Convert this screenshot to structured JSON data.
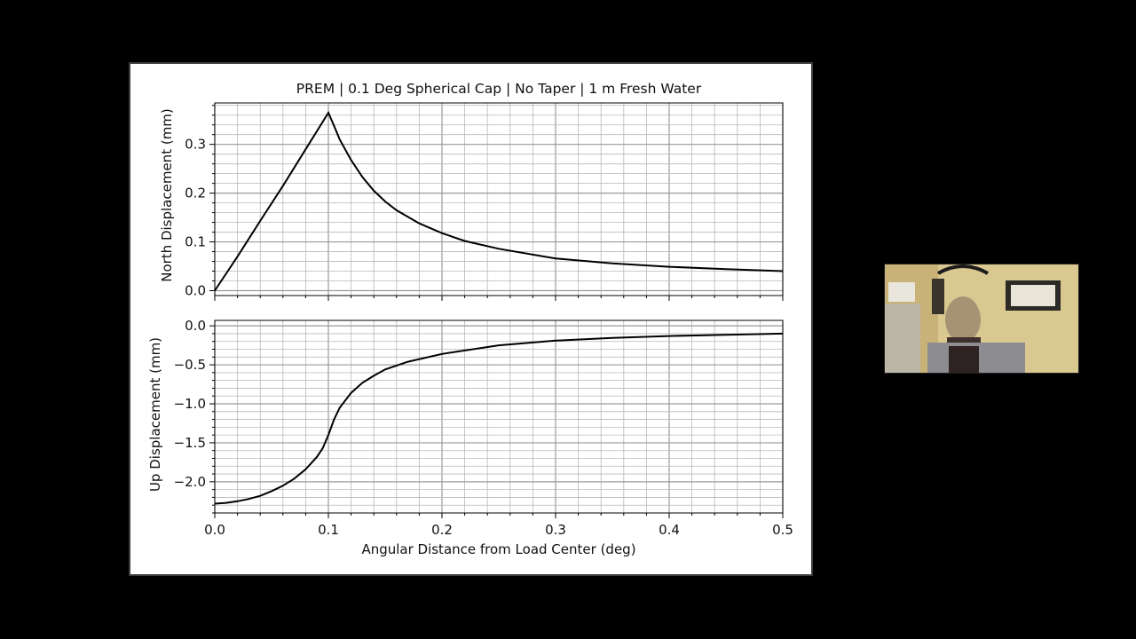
{
  "chart_data": [
    {
      "type": "line",
      "title": "PREM | 0.1 Deg Spherical Cap | No Taper | 1 m Fresh Water",
      "xlabel": "",
      "ylabel": "North Displacement (mm)",
      "xlim": [
        0,
        0.5
      ],
      "ylim": [
        -0.01,
        0.385
      ],
      "grid": true,
      "yticks": [
        0.0,
        0.1,
        0.2,
        0.3
      ],
      "ytick_labels": [
        "0.0",
        "0.1",
        "0.2",
        "0.3"
      ],
      "series": [
        {
          "color": "#000000",
          "x": [
            0.0,
            0.02,
            0.04,
            0.06,
            0.08,
            0.1,
            0.105,
            0.11,
            0.12,
            0.13,
            0.14,
            0.15,
            0.16,
            0.18,
            0.2,
            0.22,
            0.25,
            0.3,
            0.35,
            0.4,
            0.45,
            0.5
          ],
          "y": [
            0.0,
            0.07,
            0.143,
            0.215,
            0.29,
            0.365,
            0.338,
            0.31,
            0.268,
            0.233,
            0.205,
            0.183,
            0.165,
            0.138,
            0.118,
            0.102,
            0.086,
            0.066,
            0.056,
            0.049,
            0.044,
            0.04
          ]
        }
      ]
    },
    {
      "type": "line",
      "xlabel": "Angular Distance from Load Center (deg)",
      "ylabel": "Up Displacement (mm)",
      "xlim": [
        0,
        0.5
      ],
      "ylim": [
        -2.4,
        0.07
      ],
      "grid": true,
      "xticks": [
        0.0,
        0.1,
        0.2,
        0.3,
        0.4,
        0.5
      ],
      "xtick_labels": [
        "0.0",
        "0.1",
        "0.2",
        "0.3",
        "0.4",
        "0.5"
      ],
      "yticks": [
        0.0,
        -0.5,
        -1.0,
        -1.5,
        -2.0
      ],
      "ytick_labels": [
        "0.0",
        "−0.5",
        "−1.0",
        "−1.5",
        "−2.0"
      ],
      "series": [
        {
          "color": "#000000",
          "x": [
            0.0,
            0.01,
            0.02,
            0.03,
            0.04,
            0.05,
            0.06,
            0.07,
            0.08,
            0.09,
            0.095,
            0.1,
            0.105,
            0.11,
            0.12,
            0.13,
            0.14,
            0.15,
            0.17,
            0.2,
            0.25,
            0.3,
            0.35,
            0.4,
            0.45,
            0.5
          ],
          "y": [
            -2.28,
            -2.27,
            -2.25,
            -2.22,
            -2.18,
            -2.12,
            -2.05,
            -1.96,
            -1.84,
            -1.68,
            -1.57,
            -1.4,
            -1.2,
            -1.05,
            -0.86,
            -0.73,
            -0.64,
            -0.56,
            -0.46,
            -0.36,
            -0.25,
            -0.19,
            -0.155,
            -0.13,
            -0.115,
            -0.1
          ]
        }
      ]
    }
  ]
}
